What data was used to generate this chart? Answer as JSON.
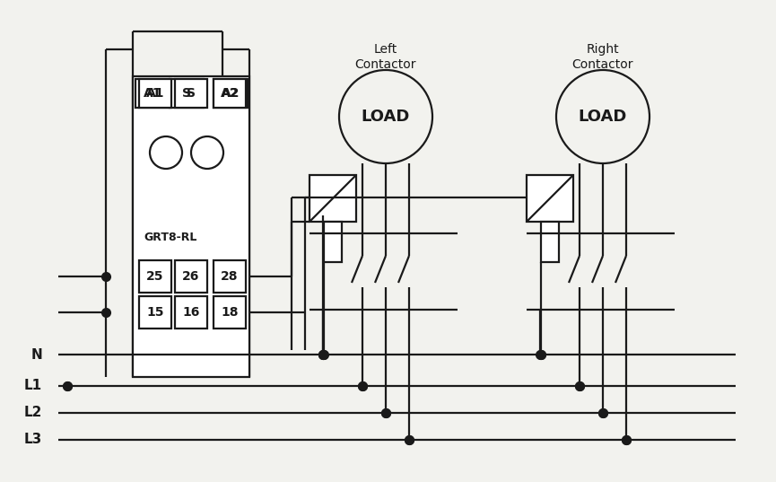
{
  "bg_color": "#f2f2ee",
  "line_color": "#1a1a1a",
  "lw": 1.6,
  "dot_size": 7,
  "relay_model": "GRT8-RL",
  "top_labels": [
    "A1",
    "S",
    "A2"
  ],
  "bottom_row1": [
    "25",
    "26",
    "28"
  ],
  "bottom_row2": [
    "15",
    "16",
    "18"
  ],
  "left_contactor_label": [
    "Left",
    "Contactor"
  ],
  "right_contactor_label": [
    "Right",
    "Contactor"
  ],
  "load_label": "LOAD",
  "bus_labels": [
    "N",
    "L1",
    "L2",
    "L3"
  ]
}
